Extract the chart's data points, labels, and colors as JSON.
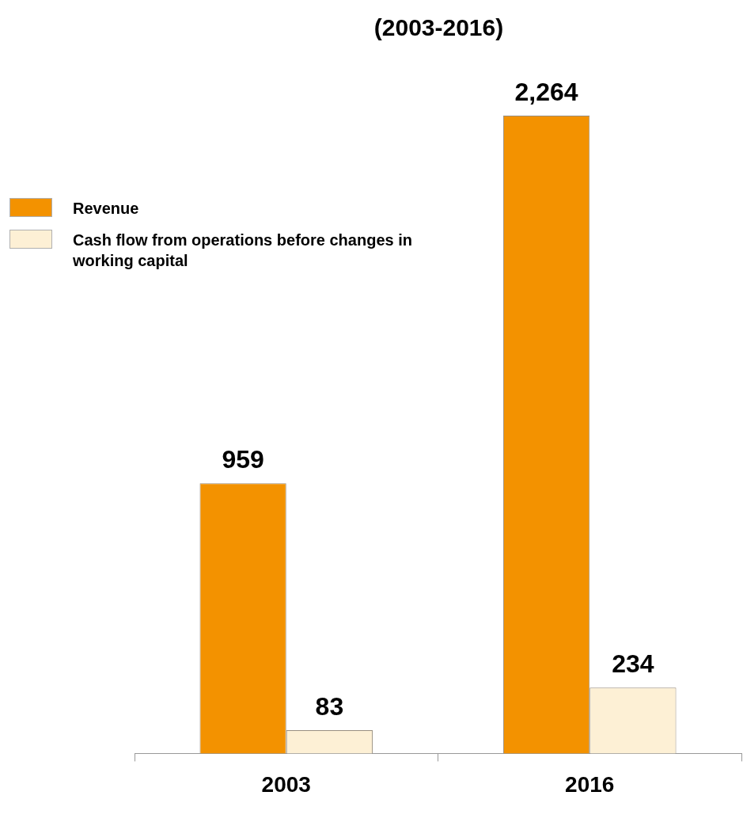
{
  "chart_data": {
    "type": "bar",
    "title": "(2003-2016)",
    "categories": [
      "2003",
      "2016"
    ],
    "series": [
      {
        "name": "Revenue",
        "color": "#f39200",
        "values": [
          959,
          2264
        ],
        "value_labels": [
          "959",
          "2,264"
        ]
      },
      {
        "name": "Cash flow from operations before changes in working capital",
        "color": "#fdf0d5",
        "values": [
          83,
          234
        ],
        "value_labels": [
          "83",
          "234"
        ]
      }
    ],
    "legend": "top left",
    "grid": false
  }
}
